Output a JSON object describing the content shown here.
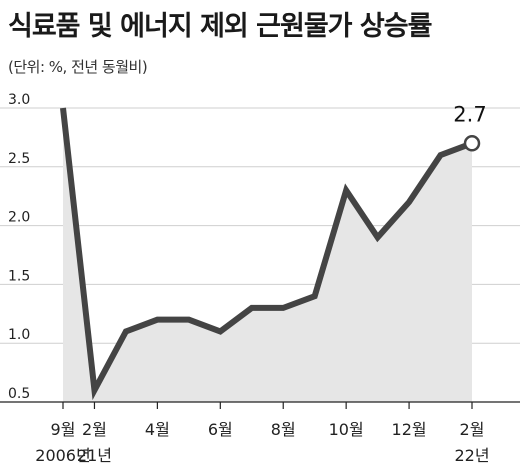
{
  "header": {
    "title": "식료품 및 에너지 제외 근원물가 상승률",
    "unit_note": "(단위: %, 전년 동월비)"
  },
  "colors": {
    "line": "#444444",
    "area": "#e6e6e6",
    "grid": "#cfcfcf",
    "axis": "#222222"
  },
  "chart_data": {
    "type": "area",
    "title": "식료품 및 에너지 제외 근원물가 상승률",
    "ylabel": "(단위: %, 전년 동월비)",
    "ylim": [
      0.5,
      3.0
    ],
    "yticks": [
      "3.0",
      "2.5",
      "2.0",
      "1.5",
      "1.0",
      "0.5"
    ],
    "grid": true,
    "x": [
      "2006-09",
      "2021-02",
      "2021-03",
      "2021-04",
      "2021-05",
      "2021-06",
      "2021-07",
      "2021-08",
      "2021-09",
      "2021-10",
      "2021-11",
      "2021-12",
      "2022-01",
      "2022-02"
    ],
    "series": [
      {
        "values": [
          3.0,
          0.6,
          1.1,
          1.2,
          1.2,
          1.1,
          1.3,
          1.3,
          1.4,
          2.3,
          1.9,
          2.2,
          2.6,
          2.7
        ]
      }
    ],
    "xtick_labels": [
      {
        "index": 0,
        "line1": "9월",
        "line2": "2006년"
      },
      {
        "index": 1,
        "line1": "2월",
        "line2": "21년"
      },
      {
        "index": 3,
        "line1": "4월",
        "line2": ""
      },
      {
        "index": 5,
        "line1": "6월",
        "line2": ""
      },
      {
        "index": 7,
        "line1": "8월",
        "line2": ""
      },
      {
        "index": 9,
        "line1": "10월",
        "line2": ""
      },
      {
        "index": 11,
        "line1": "12월",
        "line2": ""
      },
      {
        "index": 13,
        "line1": "2월",
        "line2": "22년"
      }
    ],
    "annotation": {
      "index": 13,
      "label": "2.7"
    }
  }
}
